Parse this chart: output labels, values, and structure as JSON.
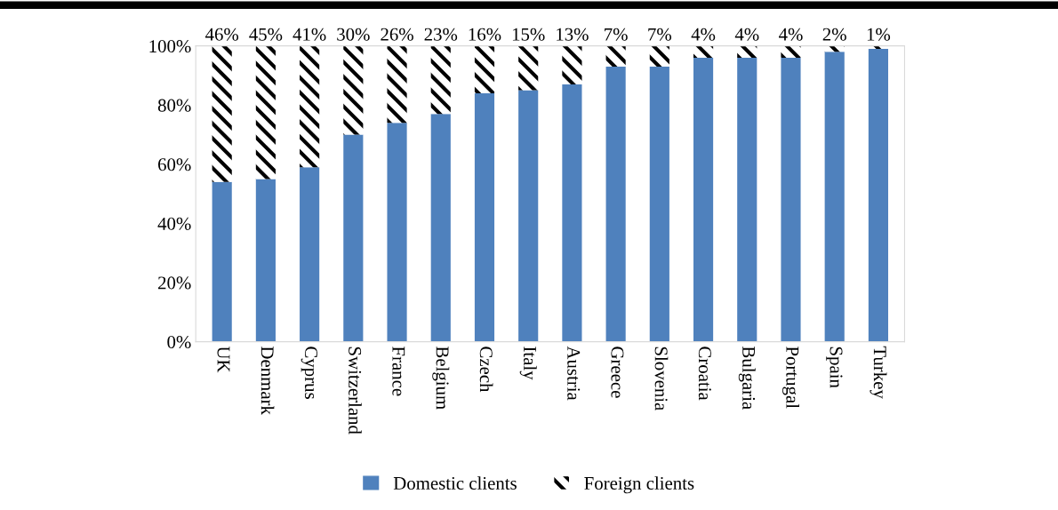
{
  "chart_data": {
    "type": "bar",
    "stacked": true,
    "categories": [
      "UK",
      "Denmark",
      "Cyprus",
      "Switzerland",
      "France",
      "Belgium",
      "Czech",
      "Italy",
      "Austria",
      "Greece",
      "Slovenia",
      "Croatia",
      "Bulgaria",
      "Portugal",
      "Spain",
      "Turkey"
    ],
    "series": [
      {
        "name": "Domestic clients",
        "color": "#4f81bd",
        "values": [
          54,
          55,
          59,
          70,
          74,
          77,
          84,
          85,
          87,
          93,
          93,
          96,
          96,
          96,
          98,
          99
        ]
      },
      {
        "name": "Foreign clients",
        "color": "#000000",
        "values": [
          46,
          45,
          41,
          30,
          26,
          23,
          16,
          15,
          13,
          7,
          7,
          4,
          4,
          4,
          2,
          1
        ],
        "value_labels": [
          "46%",
          "45%",
          "41%",
          "30%",
          "26%",
          "23%",
          "16%",
          "15%",
          "13%",
          "7%",
          "7%",
          "4%",
          "4%",
          "4%",
          "2%",
          "1%"
        ]
      }
    ],
    "ylim": [
      0,
      100
    ],
    "yticks": [
      {
        "value": 0,
        "label": "0%"
      },
      {
        "value": 20,
        "label": "20%"
      },
      {
        "value": 40,
        "label": "40%"
      },
      {
        "value": 60,
        "label": "60%"
      },
      {
        "value": 80,
        "label": "80%"
      },
      {
        "value": 100,
        "label": "100%"
      }
    ],
    "grid": false,
    "legend": "bottom"
  }
}
